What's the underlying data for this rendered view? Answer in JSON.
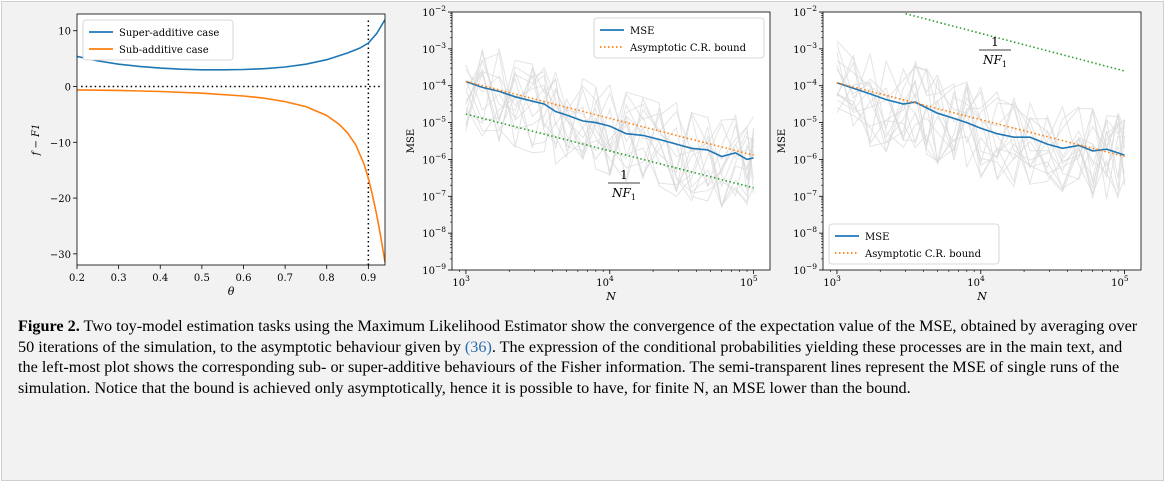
{
  "chart_data": [
    {
      "type": "line",
      "xlabel": "θ",
      "ylabel": "f − F1",
      "xlim": [
        0.2,
        0.94
      ],
      "ylim": [
        -32,
        13
      ],
      "xticks": [
        "0.2",
        "0.3",
        "0.4",
        "0.5",
        "0.6",
        "0.7",
        "0.8",
        "0.9"
      ],
      "yticks": [
        "10",
        "0",
        "−10",
        "−20",
        "−30"
      ],
      "legend_position": "upper-left",
      "grid": false,
      "series": [
        {
          "name": "Super-additive case",
          "color": "#1f77b4",
          "x": [
            0.2,
            0.25,
            0.3,
            0.35,
            0.4,
            0.45,
            0.5,
            0.55,
            0.6,
            0.65,
            0.7,
            0.75,
            0.8,
            0.85,
            0.88,
            0.9,
            0.92,
            0.94
          ],
          "y": [
            5.4,
            4.6,
            4.0,
            3.6,
            3.3,
            3.1,
            3.0,
            3.0,
            3.05,
            3.2,
            3.5,
            4.0,
            4.8,
            6.0,
            6.9,
            7.8,
            9.5,
            12.0
          ]
        },
        {
          "name": "Sub-additive case",
          "color": "#ff7f0e",
          "x": [
            0.2,
            0.3,
            0.4,
            0.5,
            0.6,
            0.65,
            0.7,
            0.75,
            0.8,
            0.83,
            0.85,
            0.87,
            0.89,
            0.9,
            0.91,
            0.92,
            0.93,
            0.94
          ],
          "y": [
            -0.6,
            -0.7,
            -0.9,
            -1.2,
            -1.7,
            -2.1,
            -2.7,
            -3.6,
            -5.2,
            -6.8,
            -8.3,
            -10.5,
            -14.0,
            -16.5,
            -19.5,
            -23.0,
            -27.0,
            -31.5
          ]
        }
      ],
      "reference_lines": [
        {
          "orientation": "horizontal",
          "value": 0,
          "style": "dotted",
          "color": "#000000"
        },
        {
          "orientation": "vertical",
          "value": 0.9,
          "style": "dotted",
          "color": "#000000"
        }
      ]
    },
    {
      "type": "line",
      "xlabel": "N",
      "ylabel": "MSE",
      "xscale": "log",
      "yscale": "log",
      "xlim": [
        800,
        130000
      ],
      "ylim": [
        1e-09,
        0.01
      ],
      "xticks": [
        1000,
        10000,
        100000
      ],
      "yticks": [
        1e-09,
        1e-08,
        1e-07,
        1e-06,
        1e-05,
        0.0001,
        0.001,
        0.01
      ],
      "legend_position": "upper-right",
      "annotation": "1/NF1",
      "grid": false,
      "series": [
        {
          "name": "MSE",
          "color": "#1f77b4",
          "x": [
            1000,
            1300,
            1700,
            2200,
            2900,
            3500,
            4200,
            5000,
            6500,
            8000,
            10000,
            13000,
            17000,
            22000,
            29000,
            37000,
            48000,
            60000,
            75000,
            90000,
            100000
          ],
          "y": [
            0.00013,
            9e-05,
            7e-05,
            5e-05,
            3.8e-05,
            3.2e-05,
            2e-05,
            1.6e-05,
            1.1e-05,
            1e-05,
            8e-06,
            5e-06,
            4.5e-06,
            3.5e-06,
            2.6e-06,
            2e-06,
            1.8e-06,
            1.2e-06,
            1.5e-06,
            1e-06,
            1.1e-06
          ]
        },
        {
          "name": "Asymptotic C.R. bound",
          "color": "#ff7f0e",
          "style": "dotted",
          "x": [
            1000,
            100000
          ],
          "y": [
            0.00013,
            1.3e-06
          ]
        },
        {
          "color": "#2ca02c",
          "style": "dotted",
          "x": [
            1000,
            100000
          ],
          "y": [
            1.7e-05,
            1.7e-07
          ]
        }
      ]
    },
    {
      "type": "line",
      "xlabel": "N",
      "ylabel": "MSE",
      "xscale": "log",
      "yscale": "log",
      "xlim": [
        800,
        130000
      ],
      "ylim": [
        1e-09,
        0.01
      ],
      "xticks": [
        1000,
        10000,
        100000
      ],
      "yticks": [
        1e-09,
        1e-08,
        1e-07,
        1e-06,
        1e-05,
        0.0001,
        0.001,
        0.01
      ],
      "legend_position": "lower-left",
      "annotation": "1/NF1",
      "grid": false,
      "series": [
        {
          "name": "MSE",
          "color": "#1f77b4",
          "x": [
            1000,
            1300,
            1700,
            2200,
            2900,
            3500,
            4200,
            5000,
            6500,
            8000,
            10000,
            13000,
            17000,
            22000,
            29000,
            37000,
            48000,
            60000,
            75000,
            90000,
            100000
          ],
          "y": [
            0.00012,
            8.5e-05,
            6e-05,
            4.2e-05,
            3.2e-05,
            3.6e-05,
            2.5e-05,
            1.8e-05,
            1.3e-05,
            1e-05,
            7e-06,
            5e-06,
            4e-06,
            4e-06,
            2.6e-06,
            2e-06,
            2.4e-06,
            1.7e-06,
            1.9e-06,
            1.5e-06,
            1.3e-06
          ]
        },
        {
          "name": "Asymptotic C.R. bound",
          "color": "#ff7f0e",
          "style": "dotted",
          "x": [
            1000,
            100000
          ],
          "y": [
            0.00012,
            1.2e-06
          ]
        },
        {
          "color": "#2ca02c",
          "style": "dotted",
          "x": [
            3000,
            100000
          ],
          "y": [
            0.009,
            0.00025
          ]
        }
      ]
    }
  ],
  "caption": {
    "label": "Figure 2.",
    "text_before": " Two toy-model estimation tasks using the Maximum Likelihood Estimator show the convergence of the expectation value of the MSE, obtained by averaging over 50 iterations of the simulation, to the asymptotic behaviour given by ",
    "ref": "(36)",
    "text_after": ". The expression of the conditional probabilities yielding these processes are in the main text, and the left-most plot shows the corresponding sub- or super-additive behaviours of the Fisher information. The semi-transparent lines represent the MSE of single runs of the simulation. Notice that the bound is achieved only asymptotically, hence it is possible to have, for finite N, an MSE lower than the bound."
  }
}
